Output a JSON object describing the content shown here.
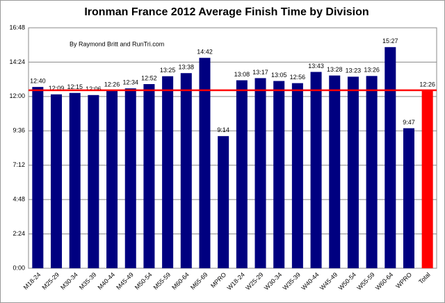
{
  "chart_data": {
    "type": "bar",
    "title": "Ironman France 2012 Average Finish Time by Division",
    "annotation": "By Raymond Britt and RunTri.com",
    "categories": [
      "M18-24",
      "M25-29",
      "M30-34",
      "M35-39",
      "M40-44",
      "M45-49",
      "M50-54",
      "M55-59",
      "M60-64",
      "M65-69",
      "MPRO",
      "W18-24",
      "W25-29",
      "W30-34",
      "W35-39",
      "W40-44",
      "W45-49",
      "W50-54",
      "W55-59",
      "W60-64",
      "WPRO",
      "Total"
    ],
    "values": [
      760,
      729,
      735,
      726,
      746,
      754,
      772,
      805,
      818,
      882,
      554,
      788,
      797,
      785,
      776,
      823,
      808,
      803,
      806,
      927,
      587,
      746
    ],
    "value_labels": [
      "12:40",
      "12:09",
      "12:15",
      "12:06",
      "12:26",
      "12:34",
      "12:52",
      "13:25",
      "13:38",
      "14:42",
      "9:14",
      "13:08",
      "13:17",
      "13:05",
      "12:56",
      "13:43",
      "13:28",
      "13:23",
      "13:26",
      "15:27",
      "9:47",
      "12:26"
    ],
    "colors": [
      "#000080",
      "#000080",
      "#000080",
      "#000080",
      "#000080",
      "#000080",
      "#000080",
      "#000080",
      "#000080",
      "#000080",
      "#000080",
      "#000080",
      "#000080",
      "#000080",
      "#000080",
      "#000080",
      "#000080",
      "#000080",
      "#000080",
      "#000080",
      "#000080",
      "#ff0000"
    ],
    "reference_line": {
      "value": 746,
      "color": "#ff0000"
    },
    "ylim": [
      0,
      1008
    ],
    "yticks": [
      {
        "value": 0,
        "label": "0:00"
      },
      {
        "value": 144,
        "label": "2:24"
      },
      {
        "value": 288,
        "label": "4:48"
      },
      {
        "value": 432,
        "label": "7:12"
      },
      {
        "value": 576,
        "label": "9:36"
      },
      {
        "value": 720,
        "label": "12:00"
      },
      {
        "value": 864,
        "label": "14:24"
      },
      {
        "value": 1008,
        "label": "16:48"
      }
    ],
    "grid": true
  }
}
